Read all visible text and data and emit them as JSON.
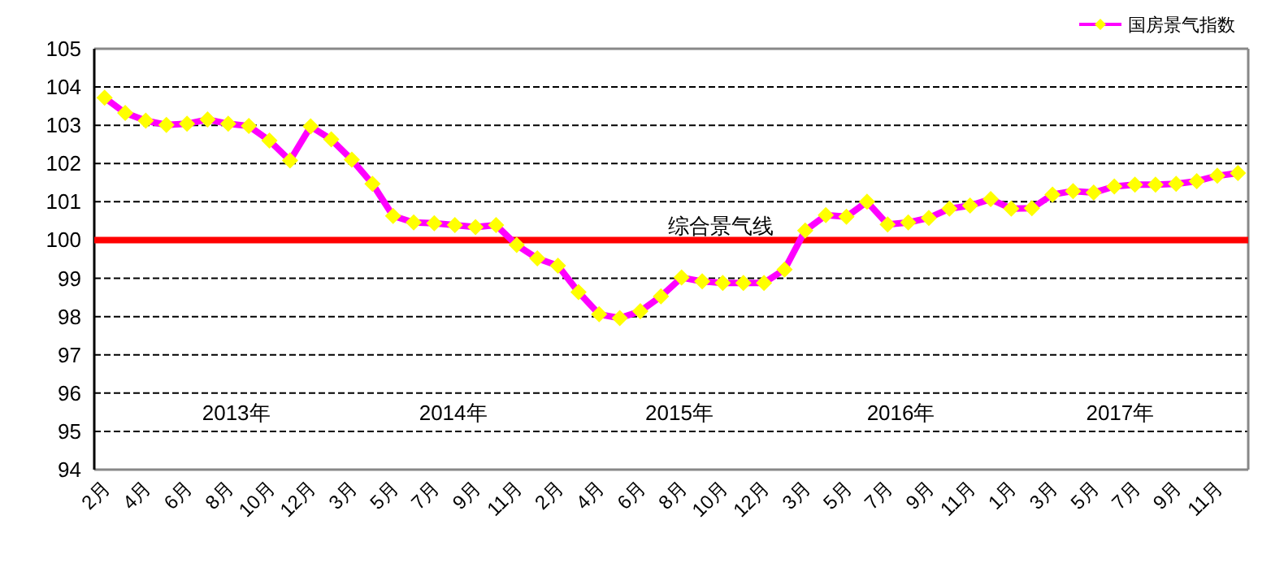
{
  "chart_data": {
    "type": "line",
    "categories": [
      "2月",
      null,
      "4月",
      null,
      "6月",
      null,
      "8月",
      null,
      "10月",
      null,
      "12月",
      null,
      "3月",
      null,
      "5月",
      null,
      "7月",
      null,
      "9月",
      null,
      "11月",
      null,
      "2月",
      null,
      "4月",
      null,
      "6月",
      null,
      "8月",
      null,
      "10月",
      null,
      "12月",
      null,
      "3月",
      null,
      "5月",
      null,
      "7月",
      null,
      "9月",
      null,
      "11月",
      null,
      "1月",
      null,
      "3月",
      null,
      "5月",
      null,
      "7月",
      null,
      "9月",
      null,
      "11月",
      null
    ],
    "series": [
      {
        "name": "国房景气指数",
        "color": "#ff00ff",
        "values": [
          103.72,
          103.32,
          103.12,
          103.01,
          103.04,
          103.15,
          103.04,
          102.98,
          102.6,
          102.08,
          102.97,
          102.63,
          102.1,
          101.47,
          100.63,
          100.46,
          100.44,
          100.39,
          100.34,
          100.39,
          99.87,
          99.52,
          99.33,
          98.64,
          98.06,
          97.96,
          98.14,
          98.53,
          99.02,
          98.92,
          98.88,
          98.88,
          98.88,
          99.23,
          100.25,
          100.65,
          100.61,
          101.0,
          100.41,
          100.46,
          100.58,
          100.82,
          100.9,
          101.07,
          100.82,
          100.83,
          101.19,
          101.28,
          101.24,
          101.4,
          101.45,
          101.45,
          101.47,
          101.54,
          101.68,
          101.75
        ]
      }
    ],
    "ylim": [
      94,
      105
    ],
    "yticks": [
      94,
      95,
      96,
      97,
      98,
      99,
      100,
      101,
      102,
      103,
      104,
      105
    ],
    "grid": "y",
    "legend": "top right",
    "marker": "diamond",
    "line_style": "solid",
    "ref_lines": [
      {
        "axis": "y",
        "value": 100,
        "label": "综合景气线",
        "color": "#ff0000"
      }
    ],
    "annotations": [
      "2013年",
      "2014年",
      "2015年",
      "2016年",
      "2017年"
    ]
  }
}
